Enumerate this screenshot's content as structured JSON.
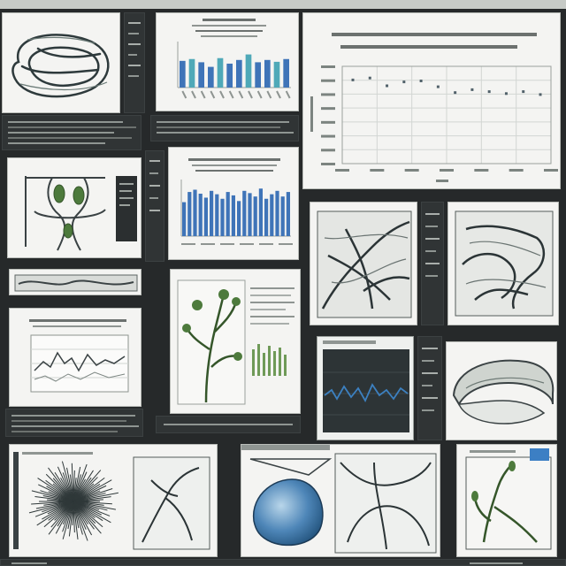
{
  "colors": {
    "background": "#26292a",
    "tile_white": "#f4f4f2",
    "bar_blue": "#3f74b8",
    "bar_teal": "#4fa9b8",
    "line_ink": "#2e3a3c",
    "plant_green": "#4d7a3c",
    "signal_blue": "#3c80c0"
  },
  "tiles": [
    {
      "name": "tile-loop-sketch",
      "kind": "sketch"
    },
    {
      "name": "tile-small-bar-chart",
      "kind": "chart"
    },
    {
      "name": "tile-large-line-chart",
      "kind": "chart"
    },
    {
      "name": "tile-plant-diagram",
      "kind": "sketch"
    },
    {
      "name": "tile-blue-bar-chart",
      "kind": "chart"
    },
    {
      "name": "tile-branching-sketch-a",
      "kind": "sketch"
    },
    {
      "name": "tile-branching-sketch-b",
      "kind": "sketch"
    },
    {
      "name": "tile-line-panel",
      "kind": "chart"
    },
    {
      "name": "tile-flower-sketch",
      "kind": "sketch"
    },
    {
      "name": "tile-signal-screen",
      "kind": "chart"
    },
    {
      "name": "tile-shell-sketch",
      "kind": "sketch"
    },
    {
      "name": "tile-radial-diagram",
      "kind": "sketch"
    },
    {
      "name": "tile-blue-blob",
      "kind": "sketch"
    },
    {
      "name": "tile-plant-window",
      "kind": "sketch"
    }
  ],
  "chart_data": [
    {
      "type": "bar",
      "title": "",
      "xlabel": "",
      "ylabel": "",
      "values": [
        0.58,
        0.62,
        0.55,
        0.45,
        0.64,
        0.52,
        0.6,
        0.72,
        0.55,
        0.6,
        0.56,
        0.62
      ]
    },
    {
      "type": "line",
      "title": "",
      "xlabel": "",
      "ylabel": "",
      "x_ticks": [
        "",
        "",
        "",
        "",
        "",
        "",
        ""
      ],
      "y_ticks": [
        "",
        "",
        "",
        "",
        "",
        "",
        "",
        ""
      ],
      "x": [
        0,
        1,
        2,
        3,
        4,
        5,
        6,
        7,
        8,
        9,
        10,
        11
      ],
      "values": [
        0.86,
        0.88,
        0.8,
        0.84,
        0.85,
        0.79,
        0.73,
        0.76,
        0.74,
        0.72,
        0.74,
        0.71
      ]
    },
    {
      "type": "bar",
      "title": "",
      "xlabel": "",
      "ylabel": "",
      "values": [
        0.6,
        0.78,
        0.82,
        0.75,
        0.68,
        0.8,
        0.74,
        0.66,
        0.78,
        0.72,
        0.62,
        0.8,
        0.76,
        0.7,
        0.84,
        0.66,
        0.74,
        0.8,
        0.7,
        0.78
      ]
    }
  ]
}
